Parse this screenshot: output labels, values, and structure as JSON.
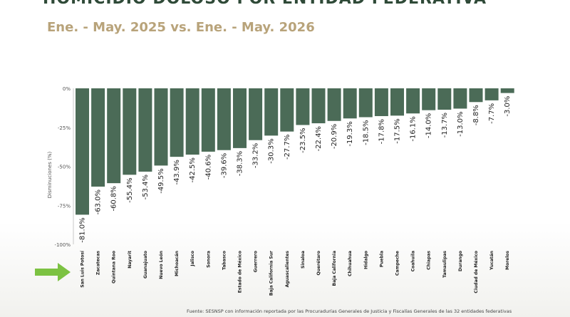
{
  "header": {
    "title": "HOMICIDIO DOLOSO POR ENTIDAD FEDERATIVA",
    "subtitle": "Ene. - May. 2025 vs. Ene. - May. 2026"
  },
  "footer": {
    "source": "Fuente: SESNSP con información reportada por las Procuradurías Generales de Justicia y Fiscalías Generales de las 32 entidades federativas"
  },
  "colors": {
    "bar": "#4b6b57",
    "arrow": "#7cc242",
    "subtitle": "#b8a37a"
  },
  "chart_data": {
    "type": "bar",
    "title": "",
    "xlabel": "",
    "ylabel": "Disminuciones (%)",
    "ylim": [
      -100,
      0
    ],
    "yticks": [
      0,
      -25,
      -50,
      -75,
      -100
    ],
    "ytick_labels": [
      "0%",
      "-25%",
      "-50%",
      "-75%",
      "-100%"
    ],
    "grid": false,
    "categories": [
      "San Luis Potosí",
      "Zacatecas",
      "Quintana Roo",
      "Nayarit",
      "Guanajuato",
      "Nuevo León",
      "Michoacán",
      "Jalisco",
      "Sonora",
      "Tabasco",
      "Estado de México",
      "Guerrero",
      "Baja California Sur",
      "Aguascalientes",
      "Sinaloa",
      "Querétaro",
      "Baja California",
      "Chihuahua",
      "Hidalgo",
      "Puebla",
      "Campeche",
      "Coahuila",
      "Chiapas",
      "Tamaulipas",
      "Durango",
      "Ciudad de México",
      "Yucatán",
      "Morelos"
    ],
    "values": [
      -81.0,
      -63.0,
      -60.8,
      -55.4,
      -53.4,
      -49.5,
      -43.9,
      -42.5,
      -40.6,
      -39.6,
      -38.3,
      -33.2,
      -30.3,
      -27.7,
      -23.5,
      -22.4,
      -20.9,
      -19.3,
      -18.5,
      -17.8,
      -17.5,
      -16.1,
      -14.0,
      -13.7,
      -13.0,
      -8.8,
      -7.7,
      -3.0
    ],
    "value_labels": [
      "-81.0%",
      "-63.0%",
      "-60.8%",
      "-55.4%",
      "-53.4%",
      "-49.5%",
      "-43.9%",
      "-42.5%",
      "-40.6%",
      "-39.6%",
      "-38.3%",
      "-33.2%",
      "-30.3%",
      "-27.7%",
      "-23.5%",
      "-22.4%",
      "-20.9%",
      "-19.3%",
      "-18.5%",
      "-17.8%",
      "-17.5%",
      "-16.1%",
      "-14.0%",
      "-13.7%",
      "-13.0%",
      "-8.8%",
      "-7.7%",
      "-3.0%"
    ],
    "highlight_category": "San Luis Potosí"
  }
}
